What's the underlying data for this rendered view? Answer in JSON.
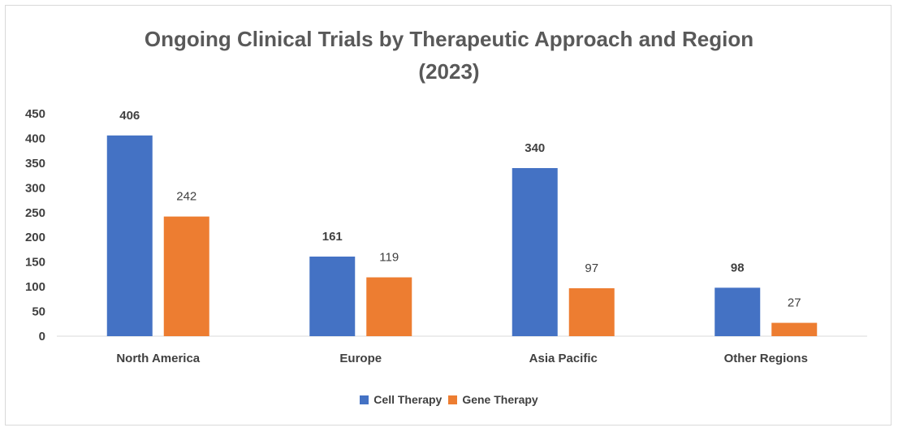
{
  "chart_data": {
    "type": "bar",
    "title": "Ongoing Clinical Trials by Therapeutic Approach and Region (2023)",
    "title_lines": [
      "Ongoing Clinical Trials by Therapeutic Approach and Region",
      "(2023)"
    ],
    "categories": [
      "North America",
      "Europe",
      "Asia Pacific",
      "Other Regions"
    ],
    "series": [
      {
        "name": "Cell Therapy",
        "values": [
          406,
          161,
          340,
          98
        ],
        "color": "#4472C4",
        "label_style": "bold"
      },
      {
        "name": "Gene Therapy",
        "values": [
          242,
          119,
          97,
          27
        ],
        "color": "#ED7D31",
        "label_style": "normal"
      }
    ],
    "ylim": [
      0,
      450
    ],
    "yticks": [
      0,
      50,
      100,
      150,
      200,
      250,
      300,
      350,
      400,
      450
    ],
    "xlabel": "",
    "ylabel": "",
    "grid": false,
    "legend_position": "bottom"
  }
}
